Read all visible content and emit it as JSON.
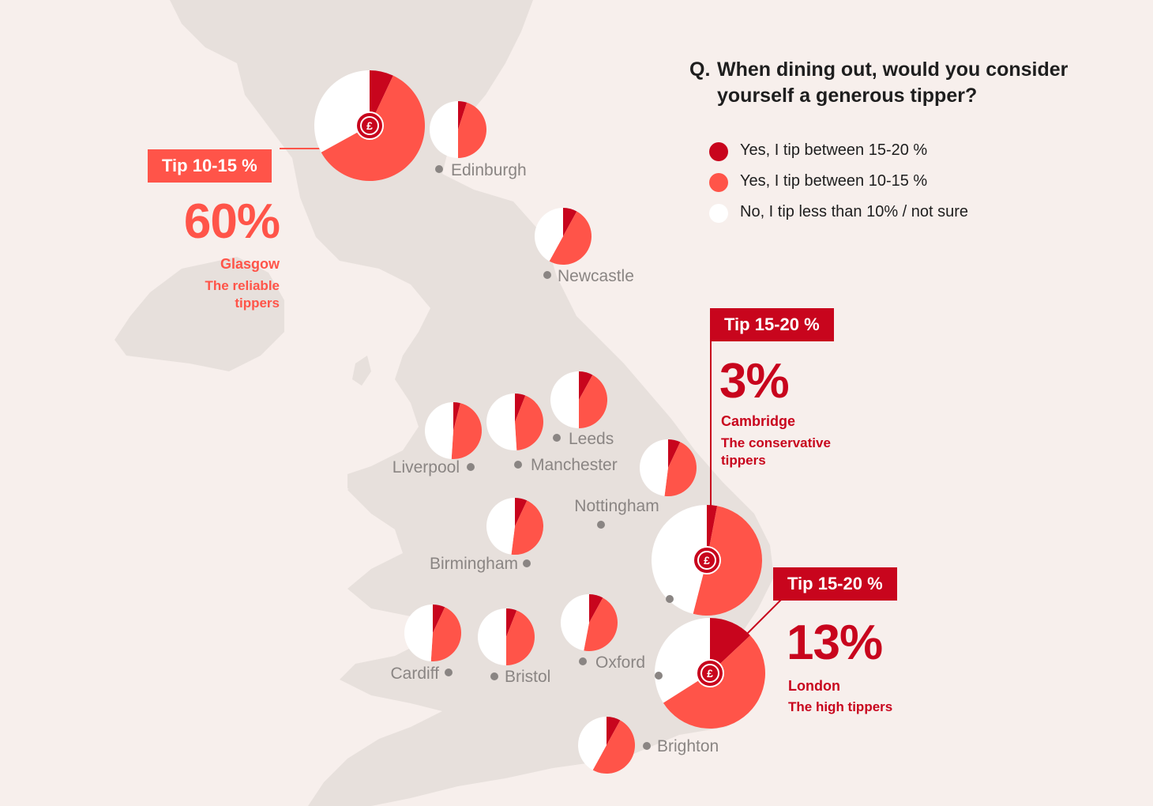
{
  "colors": {
    "background": "#f7efec",
    "land": "#e7e0dc",
    "tip_15_20": "#c8051d",
    "tip_10_15": "#ff5449",
    "tip_less_10": "#ffffff",
    "label_gray": "#8a8583",
    "dot_gray": "#8a8583"
  },
  "question": {
    "prefix": "Q.",
    "text": "When dining out, would you consider yourself a generous tipper?"
  },
  "legend": [
    {
      "key": "tip_15_20",
      "label": "Yes, I tip between 15-20 %"
    },
    {
      "key": "tip_10_15",
      "label": "Yes, I tip between 10-15 %"
    },
    {
      "key": "tip_less_10",
      "label": "No, I tip less than 10% / not sure"
    }
  ],
  "callouts": {
    "glasgow": {
      "tag": "Tip 10-15 %",
      "value": "60%",
      "city": "Glasgow",
      "desc": "The reliable tippers"
    },
    "cambridge": {
      "tag": "Tip 15-20 %",
      "value": "3%",
      "city": "Cambridge",
      "desc": "The conservative tippers"
    },
    "london": {
      "tag": "Tip 15-20 %",
      "value": "13%",
      "city": "London",
      "desc": "The high tippers"
    }
  },
  "chart_data": {
    "type": "pie",
    "title": "",
    "series_order": [
      "Yes, I tip between 15-20 %",
      "Yes, I tip between 10-15 %",
      "No, I tip less than 10% / not sure"
    ],
    "cities": [
      {
        "name": "Glasgow",
        "label": "",
        "values": [
          7,
          60,
          33
        ],
        "highlight": true
      },
      {
        "name": "Edinburgh",
        "label": "Edinburgh",
        "values": [
          5,
          45,
          50
        ]
      },
      {
        "name": "Newcastle",
        "label": "Newcastle",
        "values": [
          8,
          50,
          42
        ]
      },
      {
        "name": "Leeds",
        "label": "Leeds",
        "values": [
          8,
          42,
          50
        ]
      },
      {
        "name": "Manchester",
        "label": "Manchester",
        "values": [
          6,
          43,
          51
        ]
      },
      {
        "name": "Liverpool",
        "label": "Liverpool",
        "values": [
          4,
          47,
          49
        ]
      },
      {
        "name": "Nottingham",
        "label": "Nottingham",
        "values": [
          7,
          45,
          48
        ]
      },
      {
        "name": "Birmingham",
        "label": "Birmingham",
        "values": [
          7,
          45,
          48
        ]
      },
      {
        "name": "Cambridge",
        "label": "",
        "values": [
          3,
          51,
          46
        ],
        "highlight": true
      },
      {
        "name": "London",
        "label": "",
        "values": [
          13,
          53,
          34
        ],
        "highlight": true
      },
      {
        "name": "Cardiff",
        "label": "Cardiff",
        "values": [
          7,
          44,
          49
        ]
      },
      {
        "name": "Bristol",
        "label": "Bristol",
        "values": [
          6,
          44,
          50
        ]
      },
      {
        "name": "Oxford",
        "label": "Oxford",
        "values": [
          8,
          45,
          47
        ]
      },
      {
        "name": "Brighton",
        "label": "Brighton",
        "values": [
          8,
          50,
          42
        ]
      }
    ]
  }
}
